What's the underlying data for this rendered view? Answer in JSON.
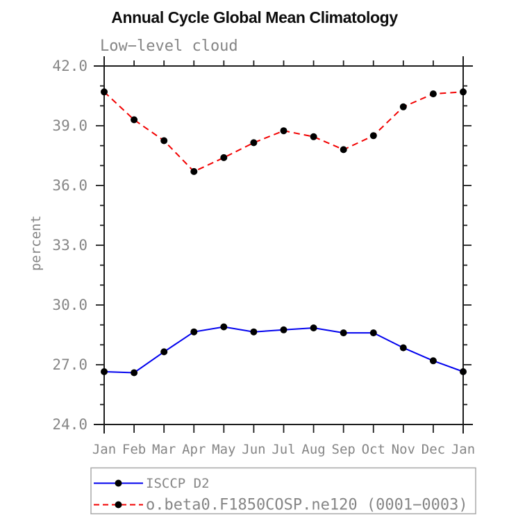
{
  "chart_data": {
    "type": "line",
    "title": "Annual Cycle Global Mean Climatology",
    "subtitle": "Low−level cloud",
    "xlabel": "",
    "ylabel": "percent",
    "categories": [
      "Jan",
      "Feb",
      "Mar",
      "Apr",
      "May",
      "Jun",
      "Jul",
      "Aug",
      "Sep",
      "Oct",
      "Nov",
      "Dec",
      "Jan"
    ],
    "ylim": [
      24.0,
      42.0
    ],
    "ytick_step": 3.0,
    "yminor_step": 1.0,
    "ytick_labels": [
      "24.0",
      "27.0",
      "30.0",
      "33.0",
      "36.0",
      "39.0",
      "42.0"
    ],
    "grid": false,
    "legend_position": "bottom-left",
    "series": [
      {
        "name": "ISCCP D2",
        "style": "solid",
        "marker": "filled-circle",
        "values": [
          26.65,
          26.6,
          27.65,
          28.65,
          28.9,
          28.65,
          28.75,
          28.85,
          28.6,
          28.6,
          27.85,
          27.2,
          26.65
        ]
      },
      {
        "name": "o.beta0.F1850COSP.ne120 (0001−0003)",
        "style": "dashed",
        "marker": "filled-circle",
        "values": [
          40.7,
          39.3,
          38.25,
          36.7,
          37.4,
          38.15,
          38.75,
          38.45,
          37.8,
          38.5,
          39.95,
          40.6,
          40.7
        ]
      }
    ]
  },
  "colors": {
    "series_blue": "#0000ee",
    "series_red": "#f20000",
    "marker": "#000000",
    "axis": "#1c1c1c",
    "label_text": "#858585",
    "title_text": "#0d0d0d",
    "legend_border": "#a8a8a8"
  }
}
